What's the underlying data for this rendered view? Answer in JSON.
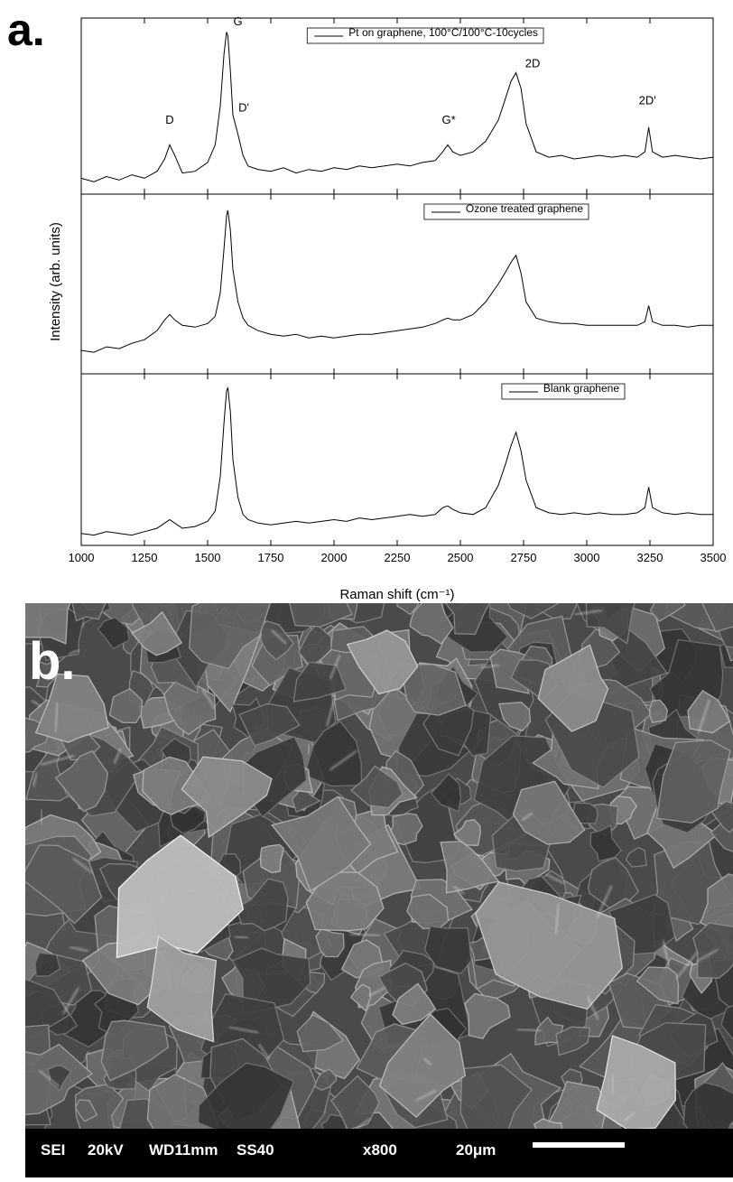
{
  "panel_a_label": "a.",
  "panel_b": {
    "label": "b.",
    "info": [
      "SEI",
      "20kV",
      "WD11mm",
      "SS40",
      "x800",
      "20μm"
    ]
  },
  "chart_data": [
    {
      "type": "line",
      "xlim": [
        1000,
        3500
      ],
      "ylim": [
        0,
        100
      ],
      "x": [
        1000,
        1050,
        1100,
        1150,
        1200,
        1250,
        1300,
        1330,
        1350,
        1370,
        1400,
        1450,
        1500,
        1530,
        1550,
        1565,
        1575,
        1580,
        1590,
        1600,
        1620,
        1640,
        1660,
        1700,
        1750,
        1800,
        1850,
        1900,
        1950,
        2000,
        2050,
        2100,
        2150,
        2200,
        2250,
        2300,
        2350,
        2400,
        2430,
        2450,
        2470,
        2500,
        2550,
        2600,
        2650,
        2680,
        2700,
        2720,
        2740,
        2760,
        2800,
        2850,
        2900,
        2950,
        3000,
        3050,
        3100,
        3150,
        3200,
        3230,
        3245,
        3260,
        3300,
        3350,
        3400,
        3450,
        3500
      ],
      "series": [
        {
          "name": "Pt on graphene, 100°C/100°C-10cycles",
          "color": "#000000",
          "values": [
            9,
            7,
            10,
            8,
            11,
            9,
            13,
            20,
            28,
            22,
            12,
            13,
            18,
            28,
            50,
            80,
            92,
            90,
            70,
            45,
            34,
            22,
            16,
            14,
            13,
            15,
            12,
            14,
            13,
            15,
            14,
            16,
            15,
            16,
            17,
            16,
            18,
            19,
            24,
            28,
            24,
            22,
            24,
            30,
            42,
            55,
            64,
            69,
            60,
            40,
            24,
            21,
            22,
            20,
            21,
            22,
            21,
            22,
            21,
            24,
            38,
            24,
            21,
            22,
            21,
            20,
            21
          ]
        }
      ],
      "annotations": [
        {
          "text": "D",
          "x": 1350,
          "y": 40
        },
        {
          "text": "G",
          "x": 1620,
          "y": 96
        },
        {
          "text": "D'",
          "x": 1643,
          "y": 47
        },
        {
          "text": "G*",
          "x": 2454,
          "y": 40
        },
        {
          "text": "2D",
          "x": 2786,
          "y": 72
        },
        {
          "text": "2D'",
          "x": 3240,
          "y": 51
        }
      ]
    },
    {
      "type": "line",
      "xlim": [
        1000,
        3500
      ],
      "ylim": [
        0,
        100
      ],
      "ylabel": "Intensity (arb. units)",
      "x": [
        1000,
        1050,
        1100,
        1150,
        1200,
        1250,
        1300,
        1330,
        1350,
        1370,
        1400,
        1450,
        1500,
        1530,
        1550,
        1565,
        1575,
        1580,
        1590,
        1600,
        1620,
        1640,
        1660,
        1700,
        1750,
        1800,
        1850,
        1900,
        1950,
        2000,
        2050,
        2100,
        2150,
        2200,
        2250,
        2300,
        2350,
        2400,
        2430,
        2450,
        2470,
        2500,
        2550,
        2600,
        2650,
        2680,
        2700,
        2720,
        2740,
        2760,
        2800,
        2850,
        2900,
        2950,
        3000,
        3050,
        3100,
        3150,
        3200,
        3230,
        3245,
        3260,
        3300,
        3350,
        3400,
        3450,
        3500
      ],
      "series": [
        {
          "name": "Ozone treated graphene",
          "color": "#000000",
          "values": [
            13,
            12,
            15,
            14,
            17,
            19,
            24,
            30,
            33,
            30,
            27,
            26,
            28,
            32,
            45,
            70,
            88,
            91,
            80,
            58,
            40,
            31,
            27,
            24,
            22,
            21,
            22,
            20,
            21,
            20,
            21,
            22,
            22,
            23,
            24,
            25,
            26,
            28,
            30,
            31,
            30,
            30,
            33,
            40,
            50,
            57,
            62,
            66,
            56,
            40,
            31,
            29,
            28,
            28,
            27,
            27,
            27,
            27,
            27,
            29,
            38,
            29,
            27,
            27,
            26,
            27,
            27
          ]
        }
      ]
    },
    {
      "type": "line",
      "xlim": [
        1000,
        3500
      ],
      "ylim": [
        0,
        100
      ],
      "xlabel": "Raman shift (cm⁻¹)",
      "xticks": [
        1000,
        1250,
        1500,
        1750,
        2000,
        2250,
        2500,
        2750,
        3000,
        3250,
        3500
      ],
      "x": [
        1000,
        1050,
        1100,
        1150,
        1200,
        1250,
        1300,
        1330,
        1350,
        1370,
        1400,
        1450,
        1500,
        1530,
        1550,
        1565,
        1575,
        1580,
        1590,
        1600,
        1620,
        1640,
        1660,
        1700,
        1750,
        1800,
        1850,
        1900,
        1950,
        2000,
        2050,
        2100,
        2150,
        2200,
        2250,
        2300,
        2350,
        2400,
        2430,
        2450,
        2470,
        2500,
        2550,
        2600,
        2650,
        2680,
        2700,
        2720,
        2740,
        2760,
        2800,
        2850,
        2900,
        2950,
        3000,
        3050,
        3100,
        3150,
        3200,
        3230,
        3245,
        3260,
        3300,
        3350,
        3400,
        3450,
        3500
      ],
      "series": [
        {
          "name": "Blank graphene",
          "color": "#000000",
          "values": [
            7,
            6,
            8,
            7,
            6,
            8,
            10,
            13,
            15,
            13,
            10,
            11,
            14,
            20,
            40,
            72,
            90,
            92,
            78,
            50,
            28,
            18,
            15,
            13,
            12,
            13,
            14,
            13,
            14,
            15,
            14,
            16,
            15,
            16,
            17,
            18,
            17,
            18,
            22,
            23,
            21,
            19,
            18,
            22,
            35,
            48,
            58,
            66,
            55,
            38,
            22,
            19,
            18,
            19,
            18,
            19,
            18,
            18,
            19,
            22,
            34,
            22,
            19,
            18,
            19,
            18,
            18
          ]
        }
      ]
    }
  ]
}
